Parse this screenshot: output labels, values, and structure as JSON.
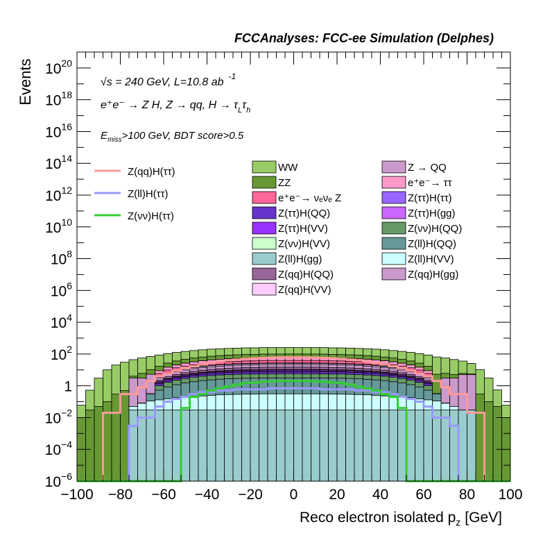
{
  "chart_data": {
    "type": "histogram",
    "title": "FCCAnalyses: FCC-ee Simulation (Delphes)",
    "xlabel": "Reco electron isolated p",
    "xlabel_sub": "z",
    "xlabel_unit": "[GeV]",
    "ylabel": "Events",
    "xlim": [
      -100,
      100
    ],
    "ylim_log10": [
      -6,
      21
    ],
    "yscale": "log",
    "x_ticks": [
      "−100",
      "−80",
      "−60",
      "−40",
      "−20",
      "0",
      "20",
      "40",
      "60",
      "80",
      "100"
    ],
    "y_ticks": [
      {
        "base": "10",
        "exp": "20"
      },
      {
        "base": "10",
        "exp": "18"
      },
      {
        "base": "10",
        "exp": "16"
      },
      {
        "base": "10",
        "exp": "14"
      },
      {
        "base": "10",
        "exp": "12"
      },
      {
        "base": "10",
        "exp": "10"
      },
      {
        "base": "10",
        "exp": "8"
      },
      {
        "base": "10",
        "exp": "6"
      },
      {
        "base": "10",
        "exp": "4"
      },
      {
        "base": "10",
        "exp": "2"
      },
      {
        "base": "1",
        "exp": ""
      },
      {
        "base": "10",
        "exp": "−2"
      },
      {
        "base": "10",
        "exp": "−4"
      },
      {
        "base": "10",
        "exp": "−6"
      }
    ],
    "annotations": {
      "line1": "√s = 240 GeV, L=10.8 ab",
      "line1_sup": "-1",
      "line2": "e⁺e⁻ → Z H, Z → qq, H → τ",
      "line2_sub1": "L",
      "line2_mid": "τ",
      "line2_sub2": "h",
      "line3_pre": "E",
      "line3_sub": "miss",
      "line3_post": ">100 GeV, BDT score>0.5"
    },
    "bin_edges_start": -100,
    "bin_width": 4,
    "stack": [
      {
        "name": "Z(ll)H(gg)",
        "color": "#99cccc",
        "values": [
          0,
          0,
          0,
          0,
          0,
          0,
          0.03,
          0.03,
          0.03,
          0.03,
          0.03,
          0.03,
          0.03,
          0.03,
          0.03,
          0.03,
          0.03,
          0.03,
          0.03,
          0.03,
          0.03,
          0.03,
          0.03,
          0.03,
          0.03,
          0.03,
          0.03,
          0.03,
          0.03,
          0.03,
          0.03,
          0.03,
          0.03,
          0.03,
          0.03,
          0.03,
          0.03,
          0.03,
          0.03,
          0.03,
          0.03,
          0.03,
          0.03,
          0.03,
          0.03,
          0.03,
          0,
          0,
          0,
          0
        ]
      },
      {
        "name": "Z(ll)H(VV)",
        "color": "#ccffff",
        "values": [
          0,
          0,
          0,
          0,
          0,
          0,
          0.02,
          0.05,
          0.08,
          0.1,
          0.12,
          0.15,
          0.17,
          0.18,
          0.2,
          0.22,
          0.24,
          0.25,
          0.26,
          0.27,
          0.27,
          0.28,
          0.28,
          0.28,
          0.28,
          0.28,
          0.28,
          0.28,
          0.28,
          0.27,
          0.27,
          0.26,
          0.25,
          0.24,
          0.22,
          0.2,
          0.18,
          0.17,
          0.15,
          0.12,
          0.1,
          0.08,
          0.05,
          0.02,
          0,
          0,
          0,
          0,
          0,
          0
        ]
      },
      {
        "name": "Z(ll)H(QQ)",
        "color": "#669999",
        "values": [
          0,
          0,
          0,
          0,
          0,
          0,
          0,
          0,
          0.2,
          0.4,
          0.7,
          1,
          1.3,
          1.6,
          1.9,
          2.1,
          2.3,
          2.5,
          2.6,
          2.7,
          2.7,
          2.8,
          2.8,
          2.8,
          2.8,
          2.8,
          2.8,
          2.8,
          2.8,
          2.7,
          2.7,
          2.6,
          2.5,
          2.3,
          2.1,
          1.9,
          1.6,
          1.3,
          1,
          0.7,
          0.4,
          0.2,
          0,
          0,
          0,
          0,
          0,
          0,
          0,
          0
        ]
      },
      {
        "name": "Z(νν)H(QQ)",
        "color": "#669966",
        "values": [
          0,
          0,
          0,
          0,
          0,
          0,
          0,
          0,
          0,
          0.5,
          0.8,
          1.1,
          1.4,
          1.7,
          1.9,
          2.1,
          2.2,
          2.3,
          2.4,
          2.5,
          2.5,
          2.5,
          2.6,
          2.6,
          2.6,
          2.6,
          2.6,
          2.6,
          2.5,
          2.5,
          2.5,
          2.4,
          2.3,
          2.2,
          2.1,
          1.9,
          1.7,
          1.4,
          1.1,
          0.8,
          0.5,
          0,
          0,
          0,
          0,
          0,
          0,
          0,
          0,
          0
        ]
      },
      {
        "name": "Z(ττ)H(QQ)",
        "color": "#6633cc",
        "values": [
          0,
          0,
          0,
          0,
          0,
          0,
          0,
          0,
          0,
          0.3,
          0.5,
          0.7,
          0.9,
          1.1,
          1.3,
          1.5,
          1.6,
          1.7,
          1.8,
          1.9,
          1.9,
          2,
          2,
          2,
          2,
          2,
          2,
          2,
          2,
          1.9,
          1.9,
          1.8,
          1.7,
          1.6,
          1.5,
          1.3,
          1.1,
          0.9,
          0.7,
          0.5,
          0.3,
          0,
          0,
          0,
          0,
          0,
          0,
          0,
          0,
          0
        ]
      },
      {
        "name": "Z(ττ)H(VV)",
        "color": "#9933ff",
        "values": [
          0,
          0,
          0,
          0,
          0,
          0,
          0,
          0,
          0,
          0.2,
          0.3,
          0.4,
          0.5,
          0.6,
          0.7,
          0.8,
          0.9,
          0.9,
          1,
          1,
          1,
          1.1,
          1.1,
          1.1,
          1.1,
          1.1,
          1.1,
          1.1,
          1.1,
          1,
          1,
          1,
          0.9,
          0.9,
          0.8,
          0.7,
          0.6,
          0.5,
          0.4,
          0.3,
          0.2,
          0,
          0,
          0,
          0,
          0,
          0,
          0,
          0,
          0
        ]
      },
      {
        "name": "Z(ττ)H(gg)",
        "color": "#cc66ff",
        "values": [
          0,
          0,
          0,
          0,
          0,
          0,
          0,
          0,
          0,
          0.2,
          0.3,
          0.4,
          0.5,
          0.6,
          0.7,
          0.8,
          0.9,
          1,
          1.1,
          1.1,
          1.2,
          1.2,
          1.2,
          1.2,
          1.2,
          1.2,
          1.2,
          1.2,
          1.2,
          1.2,
          1.1,
          1.1,
          1,
          0.9,
          0.8,
          0.7,
          0.6,
          0.5,
          0.4,
          0.3,
          0.2,
          0,
          0,
          0,
          0,
          0,
          0,
          0,
          0,
          0
        ]
      },
      {
        "name": "Z(ττ)H(ττ)",
        "color": "#9966ff",
        "values": [
          0,
          0,
          0,
          0,
          0,
          0,
          0,
          0,
          0,
          0.1,
          0.15,
          0.2,
          0.25,
          0.3,
          0.35,
          0.4,
          0.45,
          0.5,
          0.5,
          0.55,
          0.55,
          0.55,
          0.6,
          0.6,
          0.6,
          0.6,
          0.6,
          0.6,
          0.55,
          0.55,
          0.55,
          0.5,
          0.5,
          0.45,
          0.4,
          0.35,
          0.3,
          0.25,
          0.2,
          0.15,
          0.1,
          0,
          0,
          0,
          0,
          0,
          0,
          0,
          0,
          0
        ]
      },
      {
        "name": "Z(qq)H(QQ)",
        "color": "#996699",
        "values": [
          0,
          0,
          0,
          0,
          0,
          0,
          0,
          0,
          0,
          0.4,
          0.8,
          1.2,
          1.6,
          2,
          2.4,
          2.8,
          3.1,
          3.4,
          3.6,
          3.8,
          3.9,
          4,
          4.1,
          4.1,
          4.2,
          4.2,
          4.1,
          4.1,
          4,
          3.9,
          3.8,
          3.6,
          3.4,
          3.1,
          2.8,
          2.4,
          2,
          1.6,
          1.2,
          0.8,
          0.4,
          0,
          0,
          0,
          0,
          0,
          0,
          0,
          0,
          0
        ]
      },
      {
        "name": "Z(qq)H(gg)",
        "color": "#cc99cc",
        "values": [
          0,
          0,
          0,
          0,
          0,
          0,
          0,
          0,
          0,
          1,
          1.8,
          2.5,
          3.2,
          3.9,
          4.5,
          5,
          5.5,
          5.9,
          6.2,
          6.4,
          6.6,
          6.7,
          6.8,
          6.8,
          6.9,
          6.9,
          6.8,
          6.8,
          6.7,
          6.6,
          6.4,
          6.2,
          5.9,
          5.5,
          5,
          4.5,
          3.9,
          3.2,
          2.5,
          1.8,
          1,
          0,
          0,
          0,
          0,
          0,
          0,
          0,
          0,
          0
        ]
      },
      {
        "name": "Z(qq)H(VV)",
        "color": "#ffccff",
        "values": [
          0,
          0,
          0,
          0,
          0,
          0,
          0,
          0,
          0,
          0.5,
          0.9,
          1.3,
          1.7,
          2.1,
          2.5,
          2.8,
          3.1,
          3.3,
          3.5,
          3.7,
          3.8,
          3.9,
          3.9,
          4,
          4,
          4,
          4,
          3.9,
          3.9,
          3.8,
          3.7,
          3.5,
          3.3,
          3.1,
          2.8,
          2.5,
          2.1,
          1.7,
          1.3,
          0.9,
          0.5,
          0,
          0,
          0,
          0,
          0,
          0,
          0,
          0,
          0
        ]
      },
      {
        "name": "Z(νν)H(VV)",
        "color": "#ccffcc",
        "values": [
          0,
          0,
          0,
          0,
          0,
          0,
          0,
          0,
          0,
          0.2,
          0.4,
          0.6,
          0.8,
          1,
          1.2,
          1.3,
          1.4,
          1.5,
          1.6,
          1.7,
          1.7,
          1.8,
          1.8,
          1.8,
          1.8,
          1.8,
          1.8,
          1.8,
          1.8,
          1.7,
          1.7,
          1.6,
          1.5,
          1.4,
          1.3,
          1.2,
          1,
          0.8,
          0.6,
          0.4,
          0.2,
          0,
          0,
          0,
          0,
          0,
          0,
          0,
          0,
          0
        ]
      },
      {
        "name": "e⁺e⁻→ νₑνₑ Z",
        "color": "#ff6699",
        "values": [
          0,
          0,
          0,
          0,
          0,
          0,
          0,
          0,
          0,
          2,
          3,
          4,
          5,
          6,
          7,
          8,
          9,
          10,
          10,
          11,
          11,
          12,
          12,
          12,
          12,
          12,
          12,
          12,
          12,
          11,
          11,
          10,
          10,
          9,
          8,
          7,
          6,
          5,
          4,
          3,
          2,
          0,
          0,
          0,
          0,
          0,
          0,
          0,
          0,
          0
        ]
      },
      {
        "name": "e⁺e⁻→ ττ",
        "color": "#ff99cc",
        "values": [
          0,
          0,
          0,
          0,
          0,
          0,
          0,
          0,
          0,
          3,
          5,
          7,
          9,
          11,
          13,
          15,
          16,
          17,
          18,
          19,
          19,
          20,
          20,
          20,
          21,
          21,
          20,
          20,
          20,
          19,
          19,
          18,
          17,
          16,
          15,
          13,
          11,
          9,
          7,
          5,
          3,
          0,
          0,
          0,
          0,
          0,
          0,
          0,
          0,
          0
        ]
      },
      {
        "name": "Z → QQ",
        "color": "#cc99cc",
        "values": [
          0,
          0,
          0,
          0,
          0,
          0,
          3,
          3,
          5,
          0,
          0,
          0,
          0,
          0,
          0,
          0,
          0,
          0,
          0,
          0,
          0,
          0,
          0,
          0,
          0,
          0,
          0,
          0,
          0,
          0,
          0,
          0,
          0,
          0,
          0,
          0,
          0,
          0,
          0,
          0,
          0,
          0,
          3,
          3,
          5,
          5,
          0,
          0,
          0,
          0
        ]
      },
      {
        "name": "ZZ",
        "color": "#669933",
        "values": [
          0.01,
          0.03,
          0.05,
          0.1,
          0.3,
          0.5,
          1,
          3,
          5,
          8,
          12,
          16,
          20,
          24,
          27,
          30,
          33,
          35,
          37,
          38,
          39,
          40,
          40,
          40,
          40,
          40,
          40,
          40,
          40,
          39,
          38,
          37,
          35,
          33,
          30,
          27,
          24,
          20,
          16,
          12,
          8,
          5,
          3,
          2,
          1,
          0.5,
          0.3,
          0.1,
          0.05,
          0.01
        ]
      },
      {
        "name": "WW",
        "color": "#99cc66",
        "values": [
          0.05,
          0.5,
          3,
          10,
          20,
          30,
          40,
          50,
          60,
          70,
          80,
          90,
          100,
          110,
          120,
          130,
          135,
          140,
          145,
          150,
          150,
          155,
          155,
          155,
          155,
          155,
          155,
          155,
          155,
          150,
          150,
          145,
          140,
          135,
          130,
          120,
          110,
          100,
          90,
          80,
          70,
          60,
          50,
          40,
          30,
          20,
          10,
          3,
          0.5,
          0.05
        ]
      }
    ],
    "overlays": [
      {
        "name": "Z(qq)H(ττ)",
        "color": "#ff9999",
        "values": [
          0,
          0,
          0,
          0.02,
          0.02,
          0.3,
          0.3,
          0.8,
          2,
          4,
          6,
          9,
          13,
          17,
          22,
          28,
          34,
          40,
          45,
          50,
          54,
          57,
          60,
          61,
          62,
          62,
          61,
          60,
          57,
          54,
          50,
          45,
          40,
          34,
          28,
          22,
          17,
          13,
          9,
          6,
          4,
          2,
          0.8,
          0.3,
          0.3,
          0.02,
          0.02,
          0,
          0,
          0
        ]
      },
      {
        "name": "Z(ll)H(ττ)",
        "color": "#9999ff",
        "values": [
          0,
          0,
          0,
          0,
          0,
          0,
          0.003,
          0.01,
          0.01,
          0.05,
          0.1,
          0.15,
          0.2,
          0.3,
          0.4,
          0.4,
          0.5,
          0.5,
          0.6,
          0.6,
          0.6,
          0.6,
          0.7,
          0.7,
          0.7,
          0.7,
          0.7,
          0.7,
          0.6,
          0.6,
          0.6,
          0.6,
          0.5,
          0.5,
          0.4,
          0.4,
          0.3,
          0.2,
          0.15,
          0.1,
          0.05,
          0.01,
          0.01,
          0.003,
          0,
          0,
          0,
          0,
          0,
          0
        ]
      },
      {
        "name": "Z(νν)H(ττ)",
        "color": "#33cc33",
        "values": [
          0,
          0,
          0,
          0,
          0,
          0,
          0,
          0,
          0,
          0,
          0,
          0,
          0.04,
          0.2,
          0.3,
          0.5,
          0.7,
          0.9,
          1.2,
          1.5,
          1.6,
          1.8,
          1.9,
          2,
          2,
          2,
          2,
          1.9,
          1.8,
          1.6,
          1.5,
          1.2,
          0.9,
          0.7,
          0.5,
          0.3,
          0.2,
          0.04,
          0,
          0,
          0,
          0,
          0,
          0,
          0,
          0,
          0,
          0,
          0,
          0
        ]
      }
    ],
    "legend_left": [
      {
        "label": "Z(qq)H(ττ)",
        "color": "#ff9999",
        "kind": "line"
      },
      {
        "label": "Z(ll)H(ττ)",
        "color": "#9999ff",
        "kind": "line"
      },
      {
        "label": "Z(νν)H(ττ)",
        "color": "#33cc33",
        "kind": "line"
      }
    ],
    "legend_col1": [
      {
        "label": "WW",
        "color": "#99cc66"
      },
      {
        "label": "ZZ",
        "color": "#669933"
      },
      {
        "label": "e⁺e⁻→ νₑνₑ Z",
        "color": "#ff6699"
      },
      {
        "label": "Z(ττ)H(QQ)",
        "color": "#6633cc"
      },
      {
        "label": "Z(ττ)H(VV)",
        "color": "#9933ff"
      },
      {
        "label": "Z(νν)H(VV)",
        "color": "#ccffcc"
      },
      {
        "label": "Z(ll)H(gg)",
        "color": "#99cccc"
      },
      {
        "label": "Z(qq)H(QQ)",
        "color": "#996699"
      },
      {
        "label": "Z(qq)H(VV)",
        "color": "#ffccff"
      }
    ],
    "legend_col2": [
      {
        "label": "Z → QQ",
        "color": "#cc99cc"
      },
      {
        "label": "e⁺e⁻→ ττ",
        "color": "#ff99cc"
      },
      {
        "label": "Z(ττ)H(ττ)",
        "color": "#9966ff"
      },
      {
        "label": "Z(ττ)H(gg)",
        "color": "#cc66ff"
      },
      {
        "label": "Z(νν)H(QQ)",
        "color": "#669966"
      },
      {
        "label": "Z(ll)H(QQ)",
        "color": "#669999"
      },
      {
        "label": "Z(ll)H(VV)",
        "color": "#ccffff"
      },
      {
        "label": "Z(qq)H(gg)",
        "color": "#cc99cc"
      }
    ]
  }
}
